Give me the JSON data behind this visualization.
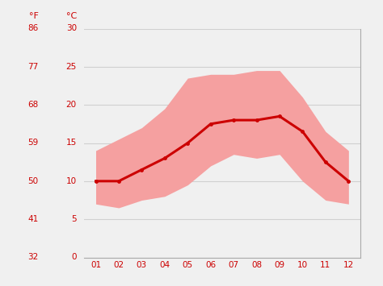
{
  "months": [
    1,
    2,
    3,
    4,
    5,
    6,
    7,
    8,
    9,
    10,
    11,
    12
  ],
  "month_labels": [
    "01",
    "02",
    "03",
    "04",
    "05",
    "06",
    "07",
    "08",
    "09",
    "10",
    "11",
    "12"
  ],
  "mean_temp_c": [
    10.0,
    10.0,
    11.5,
    13.0,
    15.0,
    17.5,
    18.0,
    18.0,
    18.5,
    16.5,
    12.5,
    10.0
  ],
  "max_temp_c": [
    14.0,
    15.5,
    17.0,
    19.5,
    23.5,
    24.0,
    24.0,
    24.5,
    24.5,
    21.0,
    16.5,
    14.0
  ],
  "min_temp_c": [
    7.0,
    6.5,
    7.5,
    8.0,
    9.5,
    12.0,
    13.5,
    13.0,
    13.5,
    10.0,
    7.5,
    7.0
  ],
  "yticks_c": [
    0,
    5,
    10,
    15,
    20,
    25,
    30
  ],
  "yticks_f": [
    32,
    41,
    50,
    59,
    68,
    77,
    86
  ],
  "ylim_c": [
    0,
    30
  ],
  "xlim": [
    0.5,
    12.5
  ],
  "line_color": "#cc0000",
  "band_color": "#f5a0a0",
  "bg_color": "#f0f0f0",
  "grid_color": "#d0d0d0",
  "tick_label_color": "#cc0000",
  "line_width": 2.2,
  "marker": "o",
  "marker_size": 3.5,
  "figsize": [
    4.74,
    3.55
  ],
  "dpi": 100
}
